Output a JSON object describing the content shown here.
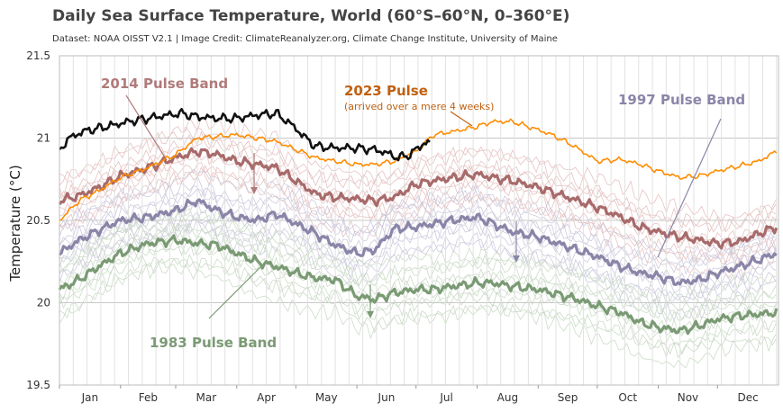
{
  "header": {
    "title": "Daily Sea Surface Temperature, World (60°S–60°N, 0–360°E)",
    "subtitle": "Dataset: NOAA OISST V2.1 | Image Credit: ClimateReanalyzer.org, Climate Change Institute, University of Maine"
  },
  "colors": {
    "y2023": "#111111",
    "orange": "#ff8c00",
    "red": "#a86a6a",
    "purple": "#8a85a8",
    "green": "#7a9a74",
    "grid": "#cfcfcf"
  },
  "chart_data": {
    "type": "line",
    "title": "Daily Sea Surface Temperature, World (60°S–60°N, 0–360°E)",
    "xlabel": "",
    "ylabel": "Temperature (°C)",
    "ylim": [
      19.5,
      21.5
    ],
    "yticks": [
      "19.5",
      "20",
      "20.5",
      "21",
      "21.5"
    ],
    "ytick_values": [
      19.5,
      20,
      20.5,
      21,
      21.5
    ],
    "xlim": [
      0,
      365
    ],
    "months": [
      "Jan",
      "Feb",
      "Mar",
      "Apr",
      "May",
      "Jun",
      "Jul",
      "Aug",
      "Sep",
      "Oct",
      "Nov",
      "Dec"
    ],
    "month_starts": [
      0,
      31,
      59,
      90,
      120,
      151,
      181,
      212,
      243,
      273,
      304,
      334
    ],
    "grid": true,
    "series": [
      {
        "key": "y2023",
        "days": [
          0,
          5,
          12,
          20,
          28,
          35,
          45,
          55,
          62,
          70,
          80,
          90,
          100,
          110,
          118,
          125,
          130,
          140,
          150,
          160,
          166,
          172,
          178,
          182,
          185,
          188
        ],
        "values": [
          20.93,
          21.0,
          21.04,
          21.06,
          21.08,
          21.1,
          21.12,
          21.14,
          21.15,
          21.13,
          21.12,
          21.12,
          21.14,
          21.15,
          21.08,
          21.0,
          20.95,
          20.94,
          20.94,
          20.93,
          20.91,
          20.88,
          20.9,
          20.94,
          20.97,
          20.97
        ]
      },
      {
        "key": "orange",
        "days": [
          0,
          10,
          20,
          31,
          45,
          59,
          70,
          80,
          90,
          100,
          110,
          120,
          130,
          140,
          151,
          160,
          170,
          181,
          190,
          200,
          212,
          220,
          230,
          243,
          250,
          260,
          273,
          285,
          295,
          304,
          315,
          325,
          334,
          345,
          355,
          364
        ],
        "values": [
          20.5,
          20.62,
          20.68,
          20.76,
          20.82,
          20.9,
          21.0,
          21.01,
          21.02,
          21.0,
          20.98,
          20.93,
          20.88,
          20.86,
          20.84,
          20.84,
          20.86,
          20.92,
          21.02,
          21.04,
          21.07,
          21.1,
          21.1,
          21.05,
          21.02,
          20.96,
          20.86,
          20.87,
          20.84,
          20.8,
          20.76,
          20.77,
          20.8,
          20.83,
          20.86,
          20.92
        ]
      },
      {
        "key": "red",
        "days": [
          0,
          10,
          20,
          31,
          45,
          59,
          70,
          80,
          90,
          100,
          110,
          120,
          130,
          140,
          151,
          160,
          170,
          181,
          190,
          200,
          212,
          220,
          230,
          243,
          253,
          263,
          273,
          285,
          295,
          304,
          315,
          325,
          334,
          345,
          355,
          364
        ],
        "values": [
          20.62,
          20.65,
          20.7,
          20.77,
          20.82,
          20.88,
          20.92,
          20.9,
          20.86,
          20.84,
          20.82,
          20.74,
          20.66,
          20.64,
          20.63,
          20.62,
          20.64,
          20.72,
          20.74,
          20.76,
          20.78,
          20.76,
          20.74,
          20.7,
          20.66,
          20.62,
          20.58,
          20.52,
          20.46,
          20.43,
          20.4,
          20.38,
          20.36,
          20.37,
          20.42,
          20.46
        ]
      },
      {
        "key": "purple",
        "days": [
          0,
          10,
          20,
          31,
          45,
          59,
          70,
          80,
          90,
          100,
          110,
          120,
          130,
          140,
          151,
          160,
          170,
          181,
          190,
          200,
          212,
          220,
          230,
          243,
          253,
          263,
          273,
          285,
          295,
          304,
          315,
          325,
          334,
          345,
          355,
          364
        ],
        "values": [
          20.3,
          20.38,
          20.44,
          20.5,
          20.52,
          20.56,
          20.62,
          20.56,
          20.52,
          20.5,
          20.54,
          20.48,
          20.42,
          20.35,
          20.3,
          20.32,
          20.45,
          20.46,
          20.48,
          20.5,
          20.52,
          20.48,
          20.43,
          20.4,
          20.36,
          20.32,
          20.28,
          20.22,
          20.18,
          20.16,
          20.12,
          20.14,
          20.18,
          20.22,
          20.26,
          20.3
        ]
      },
      {
        "key": "green",
        "days": [
          0,
          10,
          20,
          31,
          45,
          59,
          70,
          80,
          90,
          100,
          110,
          120,
          130,
          140,
          151,
          160,
          170,
          181,
          190,
          200,
          212,
          220,
          230,
          243,
          253,
          263,
          273,
          285,
          295,
          304,
          315,
          325,
          334,
          345,
          355,
          364
        ],
        "values": [
          20.08,
          20.14,
          20.22,
          20.3,
          20.36,
          20.38,
          20.36,
          20.35,
          20.3,
          20.25,
          20.22,
          20.18,
          20.15,
          20.14,
          20.04,
          20.02,
          20.06,
          20.08,
          20.08,
          20.1,
          20.12,
          20.12,
          20.1,
          20.08,
          20.05,
          20.02,
          19.98,
          19.94,
          19.88,
          19.85,
          19.83,
          19.86,
          19.9,
          19.92,
          19.93,
          19.94
        ]
      }
    ],
    "annotations": [
      {
        "key": "a2014",
        "text": "2014 Pulse Band",
        "color": "#b07a7a"
      },
      {
        "key": "a2023",
        "text": "2023 Pulse",
        "color": "#c06010"
      },
      {
        "key": "a2023sub",
        "text": "(arrived over a mere 4 weeks)",
        "color": "#c06010"
      },
      {
        "key": "a1997",
        "text": "1997 Pulse Band",
        "color": "#8a85a8"
      },
      {
        "key": "a1983",
        "text": "1983 Pulse Band",
        "color": "#7a9a74"
      }
    ]
  }
}
